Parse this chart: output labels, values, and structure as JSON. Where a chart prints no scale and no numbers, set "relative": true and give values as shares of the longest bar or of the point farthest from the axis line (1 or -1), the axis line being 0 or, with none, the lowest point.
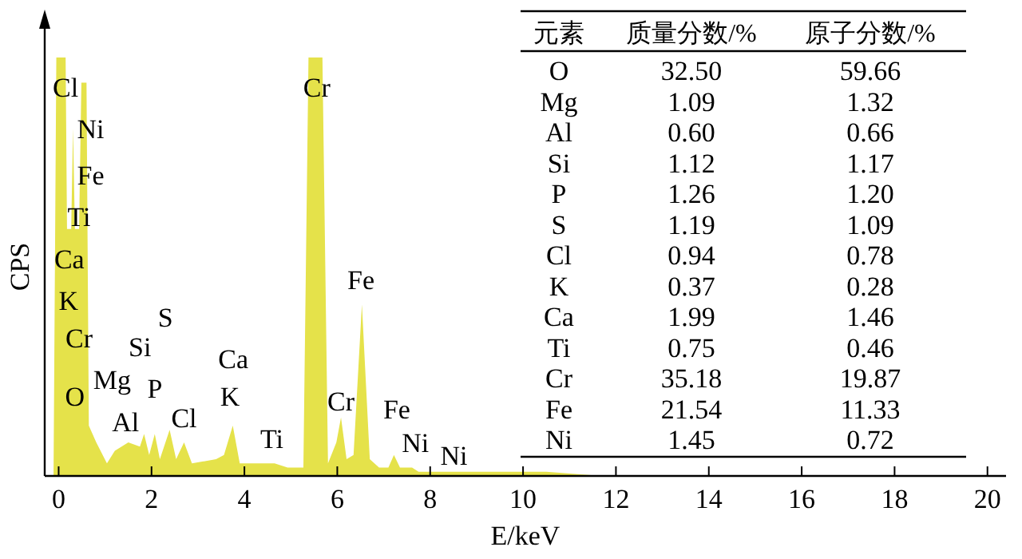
{
  "chart_data": [
    {
      "type": "area",
      "relative": true,
      "xlabel": "E/keV",
      "ylabel": "CPS",
      "color": "#e5e24a",
      "x": [
        -0.11,
        -0.05,
        0.15,
        0.18,
        0.27,
        0.31,
        0.35,
        0.44,
        0.49,
        0.6,
        0.65,
        0.81,
        1.04,
        1.21,
        1.5,
        1.75,
        1.84,
        1.95,
        2.07,
        2.18,
        2.39,
        2.53,
        2.7,
        2.87,
        3.39,
        3.56,
        3.75,
        3.9,
        4.65,
        4.93,
        5.27,
        5.38,
        5.68,
        5.8,
        5.98,
        6.08,
        6.2,
        6.35,
        6.53,
        6.7,
        6.9,
        7.1,
        7.22,
        7.35,
        7.5,
        7.61,
        7.75,
        8.5,
        9.5,
        10.5,
        11.7
      ],
      "values": [
        0,
        1,
        1,
        0.59,
        0.59,
        0.83,
        0.59,
        0.59,
        0.94,
        0.94,
        0.12,
        0.08,
        0.03,
        0.06,
        0.08,
        0.07,
        0.1,
        0.05,
        0.1,
        0.04,
        0.11,
        0.04,
        0.08,
        0.03,
        0.04,
        0.05,
        0.12,
        0.03,
        0.03,
        0.02,
        0.02,
        1,
        1,
        0.03,
        0.08,
        0.14,
        0.04,
        0.05,
        0.41,
        0.04,
        0.02,
        0.02,
        0.05,
        0.02,
        0.02,
        0.02,
        0.01,
        0.01,
        0.01,
        0.01,
        0
      ],
      "xlim": [
        -0.3,
        20.4
      ],
      "xticks": [
        0,
        2,
        4,
        6,
        8,
        10,
        12,
        14,
        16,
        18,
        20
      ],
      "annotations": [
        "Cl",
        "Ni",
        "Fe",
        "Ti",
        "Ca",
        "K",
        "Cr",
        "O",
        "Mg",
        "Al",
        "Si",
        "P",
        "S",
        "Cl",
        "Ca",
        "K",
        "Ti",
        "Cr",
        "Fe",
        "Cr",
        "Fe",
        "Ni",
        "Ni"
      ]
    },
    {
      "type": "other",
      "xlabel": "元素",
      "data_labels": true,
      "categories": [
        "O",
        "Mg",
        "Al",
        "Si",
        "P",
        "S",
        "Cl",
        "K",
        "Ca",
        "Ti",
        "Cr",
        "Fe",
        "Ni"
      ],
      "series": [
        {
          "name": "质量分数/%",
          "values": [
            32.5,
            1.09,
            0.6,
            1.12,
            1.26,
            1.19,
            0.94,
            0.37,
            1.99,
            0.75,
            35.18,
            21.54,
            1.45
          ],
          "value_labels": [
            "32.50",
            "1.09",
            "0.60",
            "1.12",
            "1.26",
            "1.19",
            "0.94",
            "0.37",
            "1.99",
            "0.75",
            "35.18",
            "21.54",
            "1.45"
          ]
        },
        {
          "name": "原子分数/%",
          "values": [
            59.66,
            1.32,
            0.66,
            1.17,
            1.2,
            1.09,
            0.78,
            0.28,
            1.46,
            0.46,
            19.87,
            11.33,
            0.72
          ],
          "value_labels": [
            "59.66",
            "1.32",
            "0.66",
            "1.17",
            "1.20",
            "1.09",
            "0.78",
            "0.28",
            "1.46",
            "0.46",
            "19.87",
            "11.33",
            "0.72"
          ]
        }
      ]
    }
  ]
}
